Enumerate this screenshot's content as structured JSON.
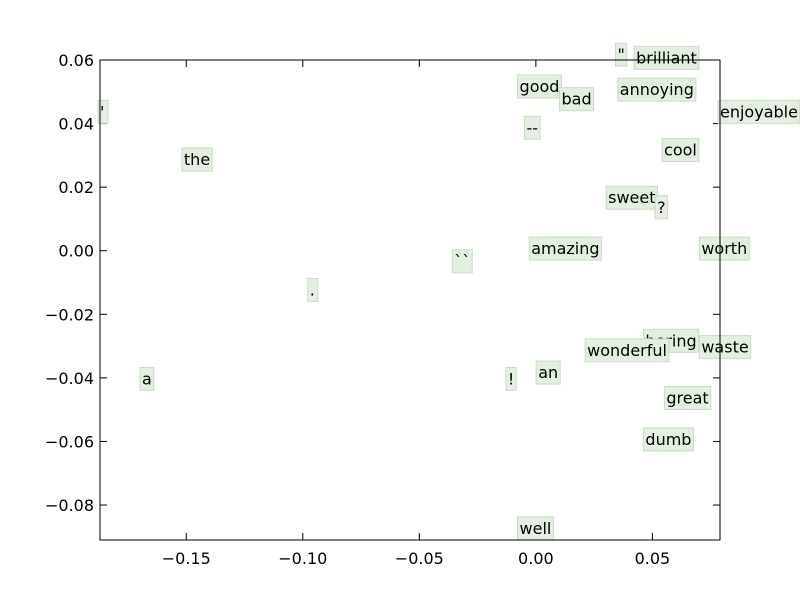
{
  "chart_data": {
    "type": "scatter",
    "title": "",
    "xlabel": "",
    "ylabel": "",
    "xlim": [
      -0.187,
      0.079
    ],
    "ylim": [
      -0.091,
      0.06
    ],
    "grid": false,
    "x_ticks": [
      -0.15,
      -0.1,
      -0.05,
      0.0,
      0.05
    ],
    "x_tick_labels": [
      "−0.15",
      "−0.10",
      "−0.05",
      "0.00",
      "0.05"
    ],
    "y_ticks": [
      0.06,
      0.04,
      0.02,
      0.0,
      -0.02,
      -0.04,
      -0.06,
      -0.08
    ],
    "y_tick_labels": [
      "0.06",
      "0.04",
      "0.02",
      "0.00",
      "−0.02",
      "−0.04",
      "−0.06",
      "−0.08"
    ],
    "label_box_color": "#e3efe0",
    "points": [
      {
        "label": "\"",
        "x": 0.035,
        "y": 0.059
      },
      {
        "label": "brilliant",
        "x": 0.043,
        "y": 0.058
      },
      {
        "label": "good",
        "x": -0.007,
        "y": 0.049
      },
      {
        "label": "bad",
        "x": 0.011,
        "y": 0.045
      },
      {
        "label": "annoying",
        "x": 0.036,
        "y": 0.048
      },
      {
        "label": "'",
        "x": -0.187,
        "y": 0.041
      },
      {
        "label": "enjoyable",
        "x": 0.079,
        "y": 0.041
      },
      {
        "label": "--",
        "x": -0.004,
        "y": 0.036
      },
      {
        "label": "the",
        "x": -0.151,
        "y": 0.026
      },
      {
        "label": "cool",
        "x": 0.055,
        "y": 0.029
      },
      {
        "label": "sweet",
        "x": 0.031,
        "y": 0.014
      },
      {
        "label": "?",
        "x": 0.052,
        "y": 0.011
      },
      {
        "label": "``",
        "x": -0.035,
        "y": -0.006
      },
      {
        "label": "amazing",
        "x": -0.002,
        "y": -0.002
      },
      {
        "label": "worth",
        "x": 0.071,
        "y": -0.002
      },
      {
        "label": ".",
        "x": -0.097,
        "y": -0.015
      },
      {
        "label": "boring",
        "x": 0.047,
        "y": -0.031
      },
      {
        "label": "waste",
        "x": 0.071,
        "y": -0.033
      },
      {
        "label": "wonderful",
        "x": 0.022,
        "y": -0.034
      },
      {
        "label": "an",
        "x": 0.001,
        "y": -0.041
      },
      {
        "label": "a",
        "x": -0.169,
        "y": -0.043
      },
      {
        "label": "!",
        "x": -0.012,
        "y": -0.043
      },
      {
        "label": "great",
        "x": 0.056,
        "y": -0.049
      },
      {
        "label": "dumb",
        "x": 0.047,
        "y": -0.062
      },
      {
        "label": "well",
        "x": -0.007,
        "y": -0.09
      }
    ]
  }
}
